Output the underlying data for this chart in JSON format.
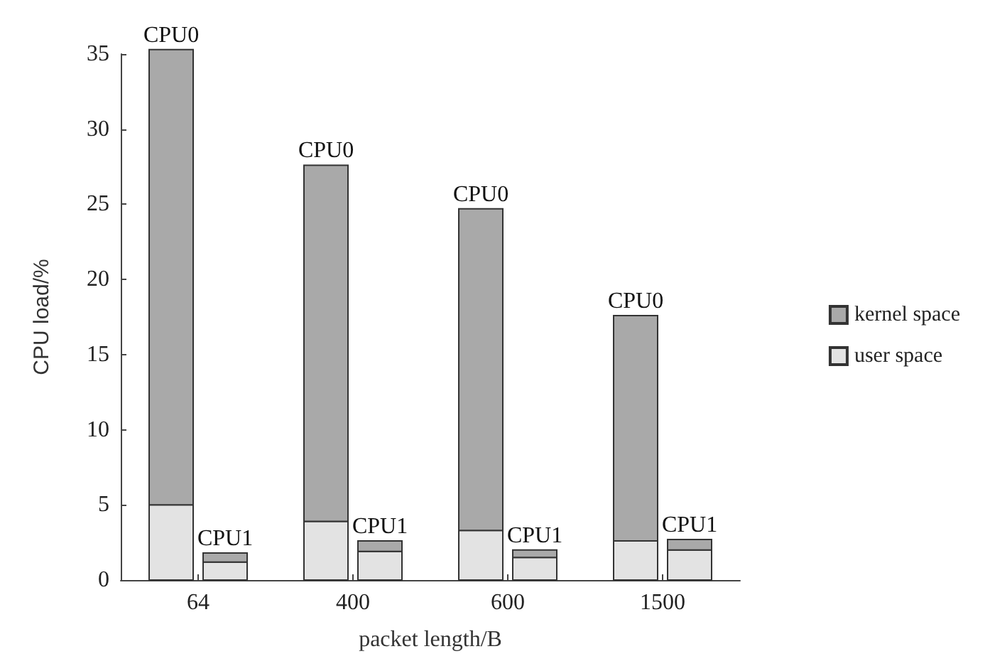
{
  "chart_data": {
    "type": "bar",
    "xlabel": "packet length/B",
    "ylabel": "CPU load/%",
    "categories": [
      "64",
      "400",
      "600",
      "1500"
    ],
    "series": [
      {
        "name": "user space",
        "color": "#e3e3e3",
        "values": [
          5.0,
          3.9,
          3.3,
          2.6
        ],
        "base": [
          0,
          0,
          0,
          0
        ]
      },
      {
        "name": "kernel space",
        "color": "#a9a9a9",
        "values": [
          30.3,
          23.7,
          21.4,
          15.0
        ],
        "base": [
          5.0,
          3.9,
          3.3,
          2.6
        ]
      },
      {
        "color": "#e3e3e3",
        "values": [
          1.2,
          1.9,
          1.5,
          2.0
        ],
        "base": [
          0,
          0,
          0,
          0
        ]
      },
      {
        "color": "#a9a9a9",
        "values": [
          0.6,
          0.7,
          0.5,
          0.7
        ],
        "base": [
          1.2,
          1.9,
          1.5,
          2.0
        ]
      }
    ],
    "annotations": [
      {
        "text": "CPU0",
        "x": "64",
        "y": 35.3
      },
      {
        "text": "CPU1",
        "x": "64",
        "y": 1.8
      },
      {
        "text": "CPU0",
        "x": "400",
        "y": 27.6
      },
      {
        "text": "CPU1",
        "x": "400",
        "y": 2.6
      },
      {
        "text": "CPU0",
        "x": "600",
        "y": 24.7
      },
      {
        "text": "CPU1",
        "x": "600",
        "y": 2.0
      },
      {
        "text": "CPU0",
        "x": "1500",
        "y": 17.6
      },
      {
        "text": "CPU1",
        "x": "1500",
        "y": 2.7
      }
    ],
    "ylim": [
      0,
      35
    ],
    "yticks": [
      0,
      5,
      10,
      15,
      20,
      25,
      30,
      35
    ],
    "grid": false,
    "legend": "right"
  }
}
